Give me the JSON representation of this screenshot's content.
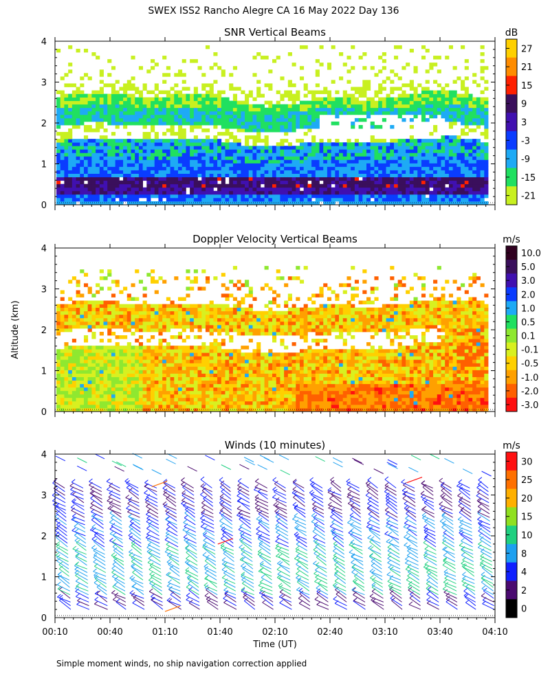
{
  "figure": {
    "title": "SWEX ISS2 Rancho Alegre CA  16 May 2022 Day 136",
    "ylabel": "Altitude (km)",
    "xlabel": "Time (UT)",
    "footnote": "Simple moment winds, no ship navigation correction applied"
  },
  "chart_data": [
    {
      "type": "heatmap",
      "title": "SNR Vertical Beams",
      "colorbar_unit": "dB",
      "colorbar_labels": [
        "27",
        "21",
        "15",
        "9",
        "3",
        "-3",
        "-9",
        "-15",
        "-21"
      ],
      "colorbar_colors": [
        "#ffd000",
        "#ff8c00",
        "#ff2000",
        "#3a0f5c",
        "#4010b0",
        "#0a3cff",
        "#1eaaf5",
        "#20e060",
        "#c8f020"
      ],
      "x_ticks": [
        "00:10",
        "00:40",
        "01:10",
        "01:40",
        "02:10",
        "02:40",
        "03:10",
        "03:40",
        "04:10"
      ],
      "y_ticks": [
        "0",
        "1",
        "2",
        "3",
        "4"
      ],
      "ylim": [
        0,
        4
      ],
      "xlim_minutes": [
        10,
        250
      ]
    },
    {
      "type": "heatmap",
      "title": "Doppler Velocity Vertical Beams",
      "colorbar_unit": "m/s",
      "colorbar_labels": [
        "10.0",
        "5.0",
        "3.0",
        "2.0",
        "1.0",
        "0.5",
        "0.1",
        "-0.1",
        "-0.5",
        "-1.0",
        "-2.0",
        "-3.0"
      ],
      "colorbar_colors": [
        "#300020",
        "#3a0f5c",
        "#4010b0",
        "#0a3cff",
        "#1eaaf5",
        "#20e060",
        "#8fe830",
        "#d8f020",
        "#ffd000",
        "#ffa000",
        "#ff6000",
        "#ff1010"
      ],
      "x_ticks": [
        "00:10",
        "00:40",
        "01:10",
        "01:40",
        "02:10",
        "02:40",
        "03:10",
        "03:40",
        "04:10"
      ],
      "y_ticks": [
        "0",
        "1",
        "2",
        "3",
        "4"
      ],
      "ylim": [
        0,
        4
      ]
    },
    {
      "type": "scatter",
      "title": "Winds (10 minutes)",
      "colorbar_unit": "m/s",
      "colorbar_labels": [
        "30",
        "25",
        "20",
        "15",
        "10",
        "8",
        "4",
        "2",
        "0"
      ],
      "colorbar_colors": [
        "#ff1010",
        "#ff7000",
        "#ffb000",
        "#90e020",
        "#20d080",
        "#1ea0f0",
        "#1020ff",
        "#4a0a70",
        "#000000"
      ],
      "x_ticks": [
        "00:10",
        "00:40",
        "01:10",
        "01:40",
        "02:10",
        "02:40",
        "03:10",
        "03:40",
        "04:10"
      ],
      "y_ticks": [
        "0",
        "1",
        "2",
        "3",
        "4"
      ],
      "ylim": [
        0,
        4
      ]
    }
  ]
}
